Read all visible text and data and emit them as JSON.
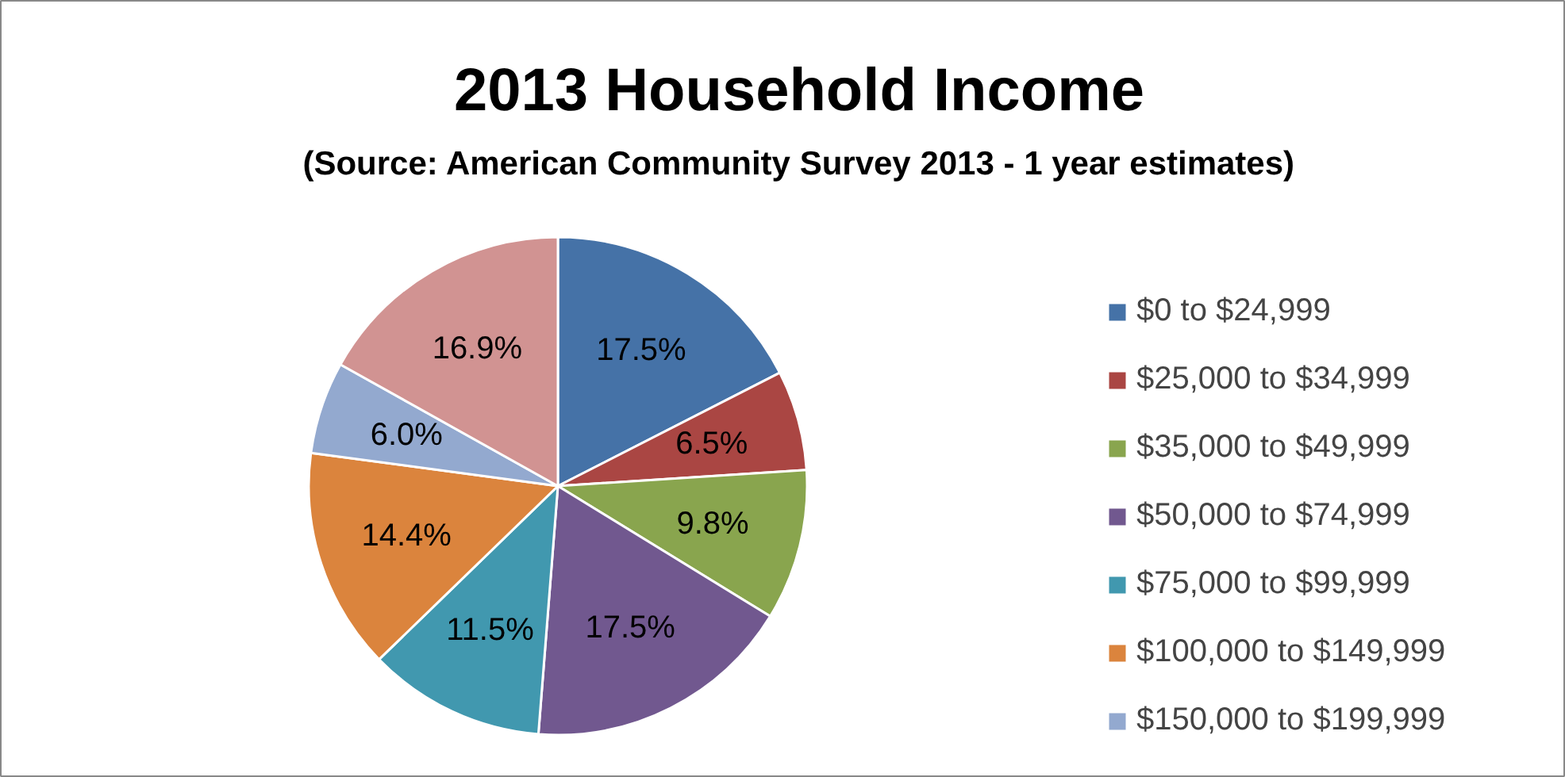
{
  "chart_data": {
    "type": "pie",
    "title": "2013 Household Income",
    "subtitle": "(Source: American Community Survey 2013 - 1 year estimates)",
    "categories": [
      "$0 to $24,999",
      "$25,000 to $34,999",
      "$35,000 to $49,999",
      "$50,000 to $74,999",
      "$75,000 to $99,999",
      "$100,000 to $149,999",
      "$150,000 to $199,999",
      null
    ],
    "values": [
      17.5,
      6.5,
      9.8,
      17.5,
      11.5,
      14.4,
      6.0,
      16.9
    ],
    "value_labels": [
      "17.5%",
      "6.5%",
      "9.8%",
      "17.5%",
      "11.5%",
      "14.4%",
      "6.0%",
      "16.9%"
    ],
    "colors": [
      "#4572a7",
      "#aa4643",
      "#89a54e",
      "#71588f",
      "#4198af",
      "#db843d",
      "#93a9cf",
      "#d19392"
    ],
    "legend": "right"
  }
}
